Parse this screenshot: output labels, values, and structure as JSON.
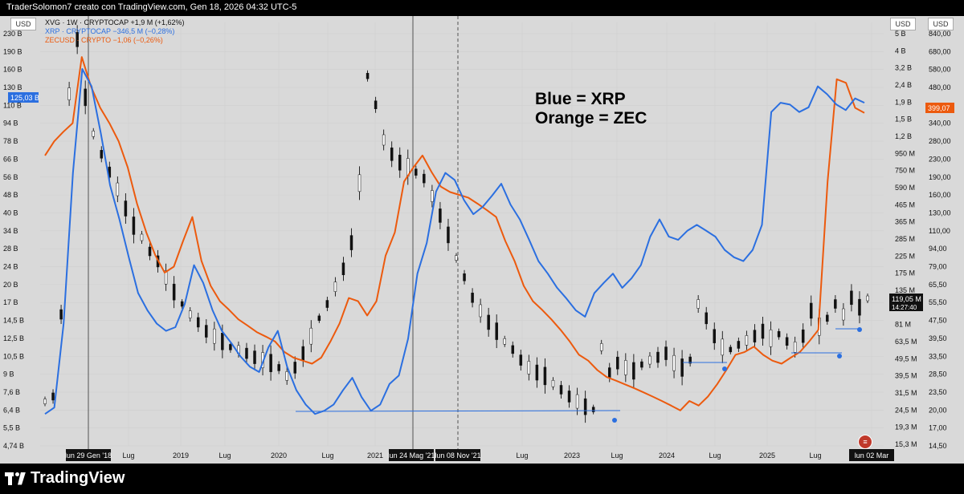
{
  "header": {
    "attribution": "TraderSolomon7 creato con TradingView.com, Gen 18, 2026 04:32 UTC-5"
  },
  "legend": [
    {
      "text": "XVG · 1W · CRYPTOCAP  +1,9 M (+1,62%)",
      "color": "#111111"
    },
    {
      "text": "XRP · CRYPTOCAP  −346,5 M (−0,28%)",
      "color": "#2b6fe0"
    },
    {
      "text": "ZECUSD · CRYPTO  −1,06 (−0,26%)",
      "color": "#ec5a0e"
    }
  ],
  "annotation": {
    "line1": "Blue = XRP",
    "line2": "Orange = ZEC"
  },
  "currency_buttons": {
    "left": "USD",
    "right1": "USD",
    "right2": "USD"
  },
  "brand": "TradingView",
  "chart_data": {
    "type": "line",
    "x_tick_labels": [
      "lun 29 Gen '18",
      "Lug",
      "2019",
      "Lug",
      "2020",
      "Lug",
      "2021",
      "lun 24 Mag '21",
      "lun 08 Nov '21",
      "Lug",
      "2023",
      "Lug",
      "2024",
      "Lug",
      "2025",
      "Lug",
      "lun 02 Mar"
    ],
    "left_axis": {
      "scale": "log",
      "ticks": [
        "230 B",
        "190 B",
        "160 B",
        "130 B",
        "110 B",
        "94 B",
        "78 B",
        "66 B",
        "56 B",
        "48 B",
        "40 B",
        "34 B",
        "28 B",
        "24 B",
        "20 B",
        "17 B",
        "14,5 B",
        "12,5 B",
        "10,5 B",
        "9 B",
        "7,6 B",
        "6,4 B",
        "5,5 B",
        "4,74 B"
      ],
      "current_label": "125,03 B"
    },
    "right_axis_1": {
      "scale": "log",
      "ticks": [
        "5 B",
        "4 B",
        "3,2 B",
        "2,4 B",
        "1,9 B",
        "1,5 B",
        "1,2 B",
        "950 M",
        "750 M",
        "590 M",
        "465 M",
        "365 M",
        "285 M",
        "225 M",
        "175 M",
        "135 M",
        "105 M",
        "81 M",
        "63,5 M",
        "49,5 M",
        "39,5 M",
        "31,5 M",
        "24,5 M",
        "19,3 M",
        "15,3 M"
      ],
      "current_label": "119,05 M",
      "current_time": "14:27:40"
    },
    "right_axis_2": {
      "scale": "log",
      "ticks": [
        "840,00",
        "680,00",
        "580,00",
        "480,00",
        "400,00",
        "340,00",
        "280,00",
        "230,00",
        "190,00",
        "160,00",
        "130,00",
        "110,00",
        "94,00",
        "79,00",
        "65,50",
        "55,50",
        "47,50",
        "39,50",
        "33,50",
        "28,50",
        "23,50",
        "20,00",
        "17,00",
        "14,50"
      ],
      "current_label": "399,07"
    },
    "series": [
      {
        "name": "XRP · CRYPTOCAP",
        "color": "#2b6fe0",
        "values": [
          6.4,
          6.8,
          15,
          62,
          165,
          140,
          90,
          55,
          40,
          28,
          20,
          17,
          15,
          14,
          14.5,
          18,
          26,
          22,
          17,
          14,
          12.5,
          11,
          10,
          9.5,
          12,
          14,
          10,
          8,
          7,
          6.4,
          6.6,
          7,
          8,
          9,
          7.5,
          6.6,
          7,
          8.5,
          9.2,
          13,
          24,
          32,
          52,
          62,
          58,
          48,
          42,
          45,
          50,
          56,
          46,
          40,
          33,
          27,
          24,
          21,
          19,
          17,
          16,
          20,
          22,
          24,
          21,
          23,
          26,
          34,
          40,
          34,
          33,
          36,
          38,
          36,
          34,
          30,
          28,
          27,
          30,
          38,
          110,
          120,
          118,
          110,
          115,
          140,
          130,
          118,
          112,
          125,
          120
        ]
      },
      {
        "name": "ZECUSD · CRYPTO",
        "color": "#ec5a0e",
        "values": [
          260,
          300,
          330,
          360,
          700,
          520,
          420,
          360,
          300,
          230,
          160,
          120,
          95,
          80,
          85,
          110,
          140,
          90,
          70,
          60,
          55,
          50,
          47,
          44,
          42,
          40,
          36,
          34,
          33,
          32,
          34,
          40,
          48,
          62,
          60,
          52,
          60,
          95,
          120,
          200,
          230,
          260,
          220,
          190,
          180,
          175,
          170,
          160,
          150,
          140,
          110,
          90,
          70,
          60,
          55,
          50,
          45,
          40,
          35,
          33,
          30,
          28,
          27,
          26,
          25,
          24,
          23,
          22,
          21,
          20,
          22,
          21,
          23,
          26,
          30,
          35,
          36,
          38,
          35,
          33,
          32,
          34,
          36,
          40,
          45,
          200,
          560,
          540,
          420,
          399
        ]
      },
      {
        "name": "XVG · CRYPTOCAP",
        "color": "#111111",
        "values": [
          28,
          30,
          95,
          2100,
          4500,
          2000,
          1200,
          900,
          700,
          550,
          420,
          330,
          280,
          230,
          200,
          160,
          130,
          110,
          95,
          85,
          75,
          70,
          65,
          60,
          58,
          55,
          52,
          50,
          48,
          45,
          40,
          45,
          55,
          70,
          90,
          110,
          140,
          180,
          260,
          600,
          2700,
          1800,
          1100,
          900,
          800,
          750,
          700,
          640,
          500,
          380,
          290,
          210,
          160,
          120,
          100,
          85,
          75,
          65,
          58,
          50,
          45,
          42,
          40,
          36,
          33,
          30,
          28,
          26,
          25,
          60,
          42,
          48,
          45,
          43,
          47,
          50,
          52,
          55,
          48,
          45,
          50,
          110,
          90,
          70,
          60,
          58,
          62,
          66,
          70,
          75,
          68,
          72,
          65,
          60,
          70,
          100,
          80,
          90,
          110,
          95,
          120,
          105,
          119
        ]
      }
    ],
    "markers": [
      {
        "series": "XRP · CRYPTOCAP",
        "note": "support line 2020 low to 2023 low"
      },
      {
        "series": "XVG · CRYPTOCAP",
        "note": "support lines 2024 / 2025 lows"
      }
    ]
  }
}
